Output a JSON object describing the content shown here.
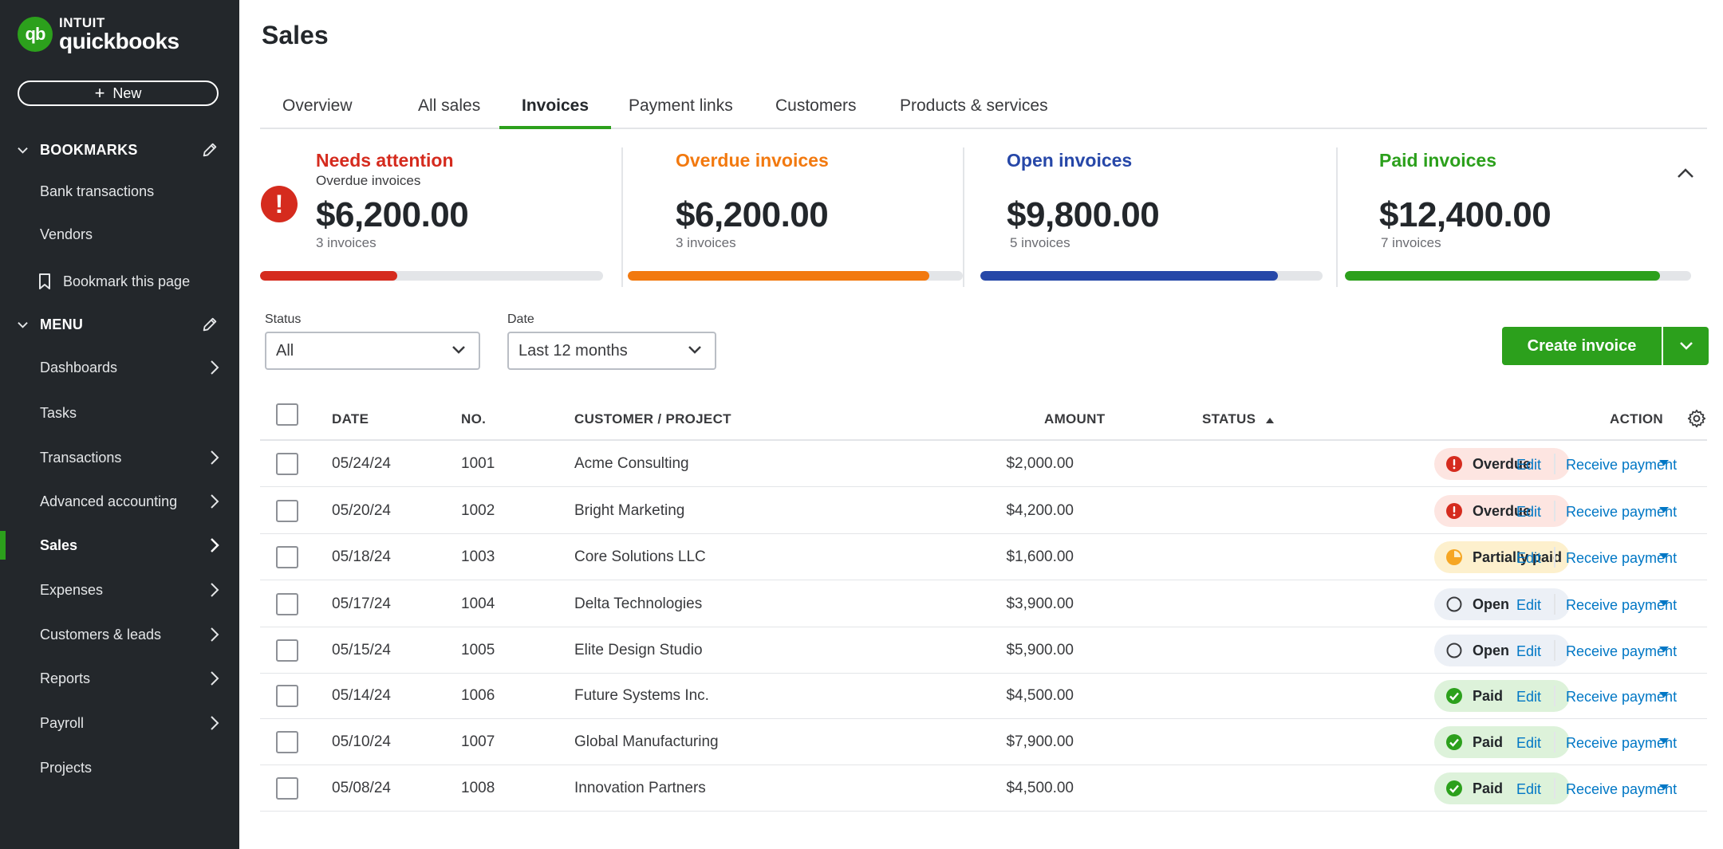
{
  "brand": {
    "company": "INTUIT",
    "product": "quickbooks",
    "logo_letters": "qb",
    "accent": "#2ca01c"
  },
  "sidebar": {
    "new_label": "New",
    "bookmarks_label": "BOOKMARKS",
    "bookmarks": [
      "Bank transactions",
      "Vendors"
    ],
    "bookmark_page_label": "Bookmark this page",
    "menu_label": "MENU",
    "menu": [
      {
        "label": "Dashboards"
      },
      {
        "label": "Tasks"
      },
      {
        "label": "Transactions"
      },
      {
        "label": "Advanced accounting"
      },
      {
        "label": "Sales"
      },
      {
        "label": "Expenses"
      },
      {
        "label": "Customers & leads"
      },
      {
        "label": "Reports"
      },
      {
        "label": "Payroll"
      },
      {
        "label": "Projects"
      }
    ]
  },
  "page": {
    "title": "Sales"
  },
  "tabs": [
    "Overview",
    "All sales",
    "Invoices",
    "Payment links",
    "Customers",
    "Products & services"
  ],
  "active_tab": "Invoices",
  "summary": [
    {
      "title": "Needs attention",
      "subtitle": "Overdue invoices",
      "amount": "$6,200.00",
      "count": "3 invoices",
      "color": "#d52b1e",
      "progress": 0.4
    },
    {
      "title": "Overdue invoices",
      "subtitle": "",
      "amount": "$6,200.00",
      "count": "3 invoices",
      "color": "#f2790f",
      "progress": 0.9
    },
    {
      "title": "Open invoices",
      "subtitle": "",
      "amount": "$9,800.00",
      "count": "5 invoices",
      "color": "#2647a8",
      "progress": 0.87
    },
    {
      "title": "Paid invoices",
      "subtitle": "",
      "amount": "$12,400.00",
      "count": "7 invoices",
      "color": "#2ca01c",
      "progress": 0.91
    }
  ],
  "filters": {
    "status_label": "Status",
    "status_value": "All",
    "date_label": "Date",
    "date_value": "Last 12 months"
  },
  "create_invoice_label": "Create invoice",
  "table": {
    "headers": {
      "date": "DATE",
      "no": "NO.",
      "customer": "CUSTOMER / PROJECT",
      "amount": "AMOUNT",
      "status": "STATUS",
      "action": "ACTION"
    },
    "edit_label": "Edit",
    "receive_label": "Receive payment",
    "rows": [
      {
        "date": "05/24/24",
        "no": "1001",
        "customer": "Acme Consulting",
        "amount": "$2,000.00",
        "status": "Overdue",
        "kind": "overdue"
      },
      {
        "date": "05/20/24",
        "no": "1002",
        "customer": "Bright Marketing",
        "amount": "$4,200.00",
        "status": "Overdue",
        "kind": "overdue"
      },
      {
        "date": "05/18/24",
        "no": "1003",
        "customer": "Core Solutions LLC",
        "amount": "$1,600.00",
        "status": "Partially paid",
        "kind": "partial"
      },
      {
        "date": "05/17/24",
        "no": "1004",
        "customer": "Delta Technologies",
        "amount": "$3,900.00",
        "status": "Open",
        "kind": "open"
      },
      {
        "date": "05/15/24",
        "no": "1005",
        "customer": "Elite Design Studio",
        "amount": "$5,900.00",
        "status": "Open",
        "kind": "open"
      },
      {
        "date": "05/14/24",
        "no": "1006",
        "customer": "Future Systems Inc.",
        "amount": "$4,500.00",
        "status": "Paid",
        "kind": "paid"
      },
      {
        "date": "05/10/24",
        "no": "1007",
        "customer": "Global Manufacturing",
        "amount": "$7,900.00",
        "status": "Paid",
        "kind": "paid"
      },
      {
        "date": "05/08/24",
        "no": "1008",
        "customer": "Innovation Partners",
        "amount": "$4,500.00",
        "status": "Paid",
        "kind": "paid"
      }
    ]
  }
}
